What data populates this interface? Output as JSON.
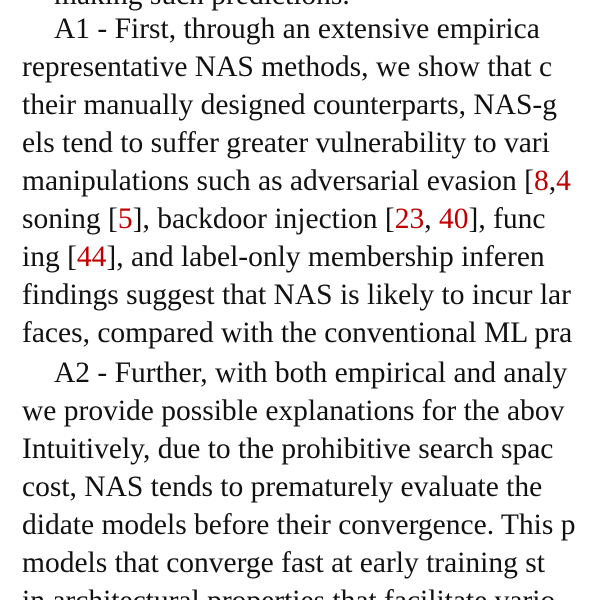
{
  "paragraph_1": {
    "label": "A1",
    "line_0": "making such predictions.",
    "line_1": "A1 - First, through an extensive empirica",
    "line_2": "representative NAS methods, we show that c",
    "line_3": "their manually designed counterparts, NAS-g",
    "line_4": "els tend to suffer greater vulnerability to vari",
    "line_5_pre": "manipulations such as adversarial evasion [",
    "line_5_ref1": "8",
    "line_5_sep": ",",
    "line_5_ref2": "4",
    "line_6_pre": "soning [",
    "line_6_ref1": "5",
    "line_6_mid": "], backdoor injection [",
    "line_6_ref2": "23",
    "line_6_sep": ", ",
    "line_6_ref3": "40",
    "line_6_post": "], func",
    "line_7_pre": "ing [",
    "line_7_ref1": "44",
    "line_7_post": "], and label-only membership inferen",
    "line_8": "findings suggest that NAS is likely to incur lar",
    "line_9": "faces, compared with the conventional ML pra"
  },
  "paragraph_2": {
    "label": "A2",
    "line_1": "A2 - Further, with both empirical and analy",
    "line_2": "we provide possible explanations for the abov",
    "line_3": "Intuitively, due to the prohibitive search spac",
    "line_4": "cost, NAS tends to prematurely evaluate the",
    "line_5": "didate models before their convergence. This p",
    "line_6": "models that converge fast at early training st",
    "line_7": "in architectural properties that facilitate vario"
  },
  "colors": {
    "text": "#111111",
    "citation": "#c00000",
    "background": "#ffffff"
  }
}
